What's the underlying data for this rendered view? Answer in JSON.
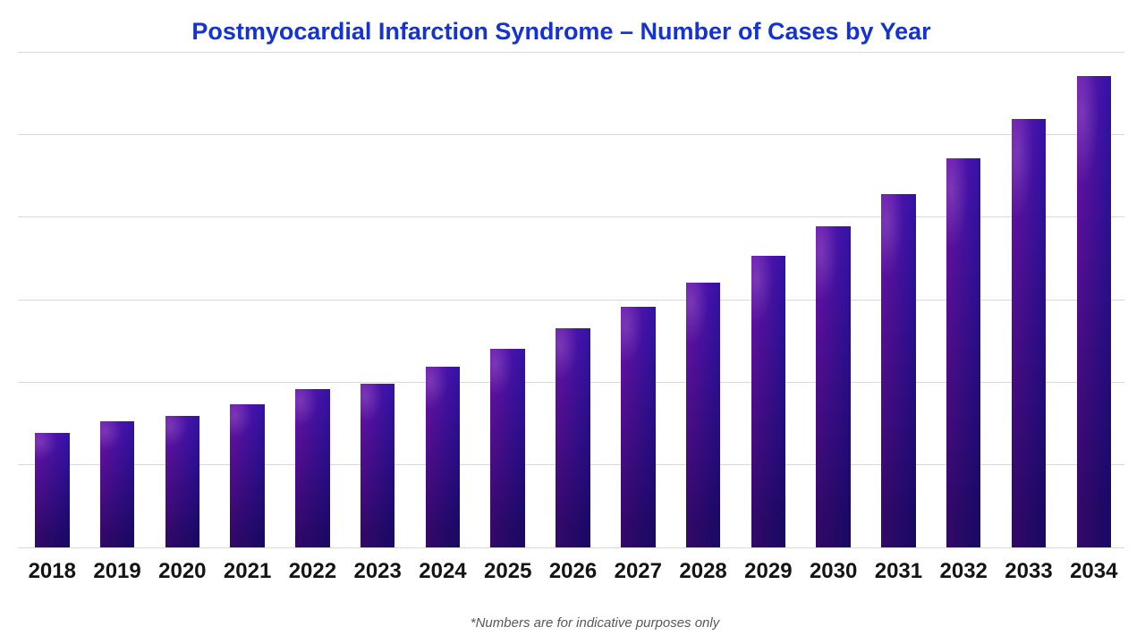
{
  "title": "Postmyocardial Infarction Syndrome – Number of Cases by Year",
  "footnote": "*Numbers are for indicative purposes only",
  "colors": {
    "title_blue": "#1533d3",
    "bar_gradient_left": "#6d13ae",
    "bar_gradient_right": "#3113a8",
    "bar_gradient_bottom": "#170a68",
    "gridline": "#d9d9d9",
    "tick_label": "#141414",
    "footnote_gray": "#595959",
    "background": "#ffffff"
  },
  "chart_data": {
    "type": "bar",
    "title": "Postmyocardial Infarction Syndrome – Number of Cases by Year",
    "categories": [
      "2018",
      "2019",
      "2020",
      "2021",
      "2022",
      "2023",
      "2024",
      "2025",
      "2026",
      "2027",
      "2028",
      "2029",
      "2030",
      "2031",
      "2032",
      "2033",
      "2034"
    ],
    "values": [
      139,
      153,
      159,
      173,
      192,
      198,
      219,
      240,
      265,
      291,
      321,
      353,
      389,
      428,
      471,
      519,
      571
    ],
    "xlabel": "",
    "ylabel": "",
    "ylim": [
      0,
      600
    ],
    "gridline_step": 100,
    "gridline_count": 7,
    "y_tick_labels_visible": false,
    "grid": "horizontal",
    "legend_position": "none",
    "annotations": [
      "*Numbers are for indicative purposes only"
    ]
  }
}
